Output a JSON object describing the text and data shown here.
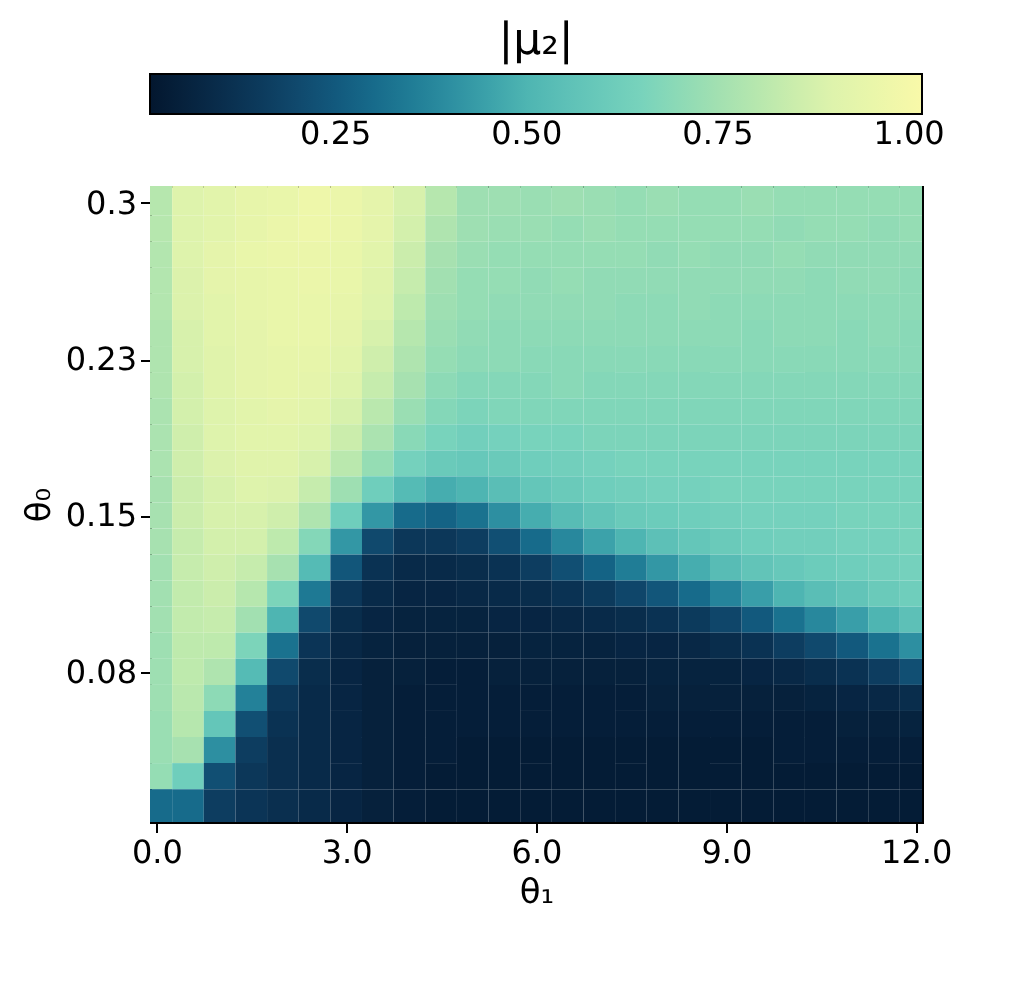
{
  "chart_data": {
    "type": "heatmap",
    "clabel": "|μ₂|",
    "xlabel": "θ₁",
    "ylabel": "θ₀",
    "x": [
      0,
      0.5,
      1,
      1.5,
      2,
      2.5,
      3,
      3.5,
      4,
      4.5,
      5,
      5.5,
      6,
      6.5,
      7,
      7.5,
      8,
      8.5,
      9,
      9.5,
      10,
      10.5,
      11,
      11.5,
      12
    ],
    "y": [
      0.3,
      0.2875,
      0.275,
      0.2625,
      0.25,
      0.2375,
      0.225,
      0.2125,
      0.2,
      0.1875,
      0.175,
      0.1625,
      0.15,
      0.1375,
      0.125,
      0.1125,
      0.1,
      0.0875,
      0.075,
      0.0625,
      0.05,
      0.0375,
      0.025,
      0.0125
    ],
    "cells": [
      [
        0.8,
        0.9,
        0.92,
        0.94,
        0.95,
        0.97,
        0.96,
        0.93,
        0.88,
        0.8,
        0.74,
        0.74,
        0.73,
        0.74,
        0.73,
        0.72,
        0.73,
        0.72,
        0.72,
        0.73,
        0.72,
        0.72,
        0.72,
        0.72,
        0.72
      ],
      [
        0.8,
        0.9,
        0.92,
        0.94,
        0.96,
        0.97,
        0.96,
        0.93,
        0.87,
        0.78,
        0.74,
        0.73,
        0.73,
        0.72,
        0.73,
        0.72,
        0.72,
        0.72,
        0.72,
        0.72,
        0.71,
        0.72,
        0.72,
        0.71,
        0.72
      ],
      [
        0.79,
        0.9,
        0.93,
        0.95,
        0.96,
        0.96,
        0.95,
        0.92,
        0.85,
        0.76,
        0.73,
        0.72,
        0.72,
        0.72,
        0.72,
        0.72,
        0.71,
        0.72,
        0.71,
        0.71,
        0.72,
        0.71,
        0.71,
        0.71,
        0.71
      ],
      [
        0.79,
        0.89,
        0.93,
        0.94,
        0.95,
        0.96,
        0.95,
        0.91,
        0.84,
        0.75,
        0.72,
        0.72,
        0.71,
        0.72,
        0.71,
        0.71,
        0.71,
        0.71,
        0.71,
        0.71,
        0.71,
        0.7,
        0.71,
        0.71,
        0.7
      ],
      [
        0.79,
        0.89,
        0.92,
        0.94,
        0.95,
        0.95,
        0.94,
        0.9,
        0.82,
        0.74,
        0.72,
        0.71,
        0.71,
        0.71,
        0.71,
        0.7,
        0.7,
        0.71,
        0.7,
        0.7,
        0.7,
        0.7,
        0.7,
        0.7,
        0.7
      ],
      [
        0.78,
        0.88,
        0.92,
        0.93,
        0.95,
        0.95,
        0.93,
        0.88,
        0.8,
        0.73,
        0.71,
        0.7,
        0.7,
        0.7,
        0.7,
        0.7,
        0.7,
        0.7,
        0.7,
        0.69,
        0.7,
        0.7,
        0.69,
        0.7,
        0.69
      ],
      [
        0.78,
        0.88,
        0.91,
        0.93,
        0.94,
        0.94,
        0.92,
        0.86,
        0.78,
        0.72,
        0.7,
        0.7,
        0.69,
        0.69,
        0.69,
        0.69,
        0.69,
        0.69,
        0.69,
        0.69,
        0.69,
        0.69,
        0.69,
        0.69,
        0.69
      ],
      [
        0.78,
        0.87,
        0.91,
        0.93,
        0.94,
        0.93,
        0.9,
        0.84,
        0.76,
        0.7,
        0.68,
        0.68,
        0.68,
        0.69,
        0.68,
        0.68,
        0.68,
        0.68,
        0.68,
        0.68,
        0.68,
        0.68,
        0.68,
        0.68,
        0.68
      ],
      [
        0.77,
        0.87,
        0.9,
        0.92,
        0.93,
        0.92,
        0.88,
        0.81,
        0.73,
        0.68,
        0.66,
        0.67,
        0.67,
        0.67,
        0.67,
        0.67,
        0.67,
        0.67,
        0.67,
        0.67,
        0.67,
        0.67,
        0.67,
        0.67,
        0.67
      ],
      [
        0.77,
        0.86,
        0.9,
        0.92,
        0.92,
        0.9,
        0.85,
        0.77,
        0.69,
        0.65,
        0.63,
        0.64,
        0.65,
        0.65,
        0.66,
        0.66,
        0.66,
        0.66,
        0.66,
        0.66,
        0.66,
        0.66,
        0.66,
        0.66,
        0.66
      ],
      [
        0.77,
        0.86,
        0.89,
        0.91,
        0.91,
        0.88,
        0.81,
        0.72,
        0.64,
        0.6,
        0.59,
        0.6,
        0.62,
        0.63,
        0.64,
        0.65,
        0.65,
        0.65,
        0.65,
        0.65,
        0.65,
        0.65,
        0.65,
        0.65,
        0.65
      ],
      [
        0.76,
        0.85,
        0.88,
        0.9,
        0.89,
        0.84,
        0.74,
        0.62,
        0.52,
        0.48,
        0.5,
        0.54,
        0.58,
        0.6,
        0.62,
        0.63,
        0.64,
        0.64,
        0.65,
        0.65,
        0.65,
        0.65,
        0.65,
        0.65,
        0.65
      ],
      [
        0.76,
        0.85,
        0.88,
        0.88,
        0.86,
        0.78,
        0.62,
        0.42,
        0.3,
        0.28,
        0.32,
        0.4,
        0.48,
        0.53,
        0.57,
        0.6,
        0.61,
        0.62,
        0.63,
        0.64,
        0.64,
        0.64,
        0.65,
        0.65,
        0.65
      ],
      [
        0.76,
        0.84,
        0.87,
        0.87,
        0.82,
        0.68,
        0.42,
        0.2,
        0.14,
        0.14,
        0.16,
        0.22,
        0.3,
        0.38,
        0.45,
        0.5,
        0.55,
        0.58,
        0.6,
        0.62,
        0.63,
        0.63,
        0.64,
        0.64,
        0.65
      ],
      [
        0.75,
        0.84,
        0.86,
        0.84,
        0.76,
        0.52,
        0.24,
        0.12,
        0.09,
        0.09,
        0.1,
        0.12,
        0.16,
        0.22,
        0.28,
        0.35,
        0.42,
        0.48,
        0.53,
        0.57,
        0.59,
        0.61,
        0.62,
        0.63,
        0.64
      ],
      [
        0.75,
        0.83,
        0.85,
        0.8,
        0.66,
        0.34,
        0.14,
        0.09,
        0.07,
        0.07,
        0.08,
        0.09,
        0.1,
        0.12,
        0.15,
        0.19,
        0.24,
        0.3,
        0.37,
        0.44,
        0.5,
        0.54,
        0.57,
        0.6,
        0.62
      ],
      [
        0.75,
        0.83,
        0.84,
        0.75,
        0.5,
        0.2,
        0.1,
        0.07,
        0.06,
        0.06,
        0.06,
        0.07,
        0.07,
        0.08,
        0.09,
        0.1,
        0.12,
        0.15,
        0.19,
        0.25,
        0.32,
        0.38,
        0.44,
        0.5,
        0.55
      ],
      [
        0.74,
        0.82,
        0.82,
        0.66,
        0.32,
        0.13,
        0.08,
        0.06,
        0.05,
        0.05,
        0.05,
        0.05,
        0.06,
        0.06,
        0.06,
        0.07,
        0.07,
        0.08,
        0.1,
        0.12,
        0.16,
        0.2,
        0.25,
        0.32,
        0.4
      ],
      [
        0.74,
        0.82,
        0.78,
        0.52,
        0.2,
        0.1,
        0.07,
        0.05,
        0.05,
        0.04,
        0.04,
        0.05,
        0.05,
        0.05,
        0.05,
        0.05,
        0.06,
        0.06,
        0.06,
        0.07,
        0.08,
        0.1,
        0.12,
        0.16,
        0.22
      ],
      [
        0.74,
        0.81,
        0.7,
        0.36,
        0.14,
        0.09,
        0.07,
        0.05,
        0.04,
        0.04,
        0.04,
        0.04,
        0.04,
        0.04,
        0.04,
        0.04,
        0.05,
        0.05,
        0.05,
        0.05,
        0.05,
        0.06,
        0.07,
        0.08,
        0.1
      ],
      [
        0.73,
        0.8,
        0.58,
        0.22,
        0.12,
        0.09,
        0.07,
        0.05,
        0.04,
        0.04,
        0.04,
        0.04,
        0.04,
        0.04,
        0.04,
        0.04,
        0.04,
        0.04,
        0.04,
        0.04,
        0.04,
        0.04,
        0.05,
        0.05,
        0.06
      ],
      [
        0.73,
        0.76,
        0.4,
        0.16,
        0.11,
        0.09,
        0.07,
        0.05,
        0.04,
        0.04,
        0.03,
        0.03,
        0.03,
        0.03,
        0.03,
        0.03,
        0.03,
        0.03,
        0.03,
        0.03,
        0.04,
        0.04,
        0.04,
        0.04,
        0.04
      ],
      [
        0.72,
        0.62,
        0.22,
        0.14,
        0.11,
        0.09,
        0.07,
        0.05,
        0.04,
        0.03,
        0.03,
        0.03,
        0.03,
        0.03,
        0.03,
        0.03,
        0.03,
        0.03,
        0.03,
        0.03,
        0.03,
        0.03,
        0.03,
        0.03,
        0.03
      ],
      [
        0.3,
        0.3,
        0.16,
        0.13,
        0.11,
        0.09,
        0.07,
        0.05,
        0.04,
        0.03,
        0.03,
        0.03,
        0.03,
        0.03,
        0.03,
        0.03,
        0.03,
        0.03,
        0.03,
        0.03,
        0.03,
        0.03,
        0.03,
        0.03,
        0.03
      ]
    ],
    "xlim": [
      -0.1,
      12.1
    ],
    "ylim": [
      0.003,
      0.308
    ],
    "xticks": [
      {
        "value": 0,
        "label": "0.0"
      },
      {
        "value": 3,
        "label": "3.0"
      },
      {
        "value": 6,
        "label": "6.0"
      },
      {
        "value": 9,
        "label": "9.0"
      },
      {
        "value": 12,
        "label": "12.0"
      }
    ],
    "yticks": [
      {
        "value": 0.075,
        "label": "0.08"
      },
      0.15,
      {
        "value": 0.225,
        "label": "0.23"
      },
      0.3
    ],
    "clim": [
      0.007,
      1.017
    ],
    "cticks": [
      0.25,
      {
        "value": 0.5,
        "label": "0.50"
      },
      0.75,
      {
        "value": 1.0,
        "label": "1.00"
      }
    ]
  }
}
